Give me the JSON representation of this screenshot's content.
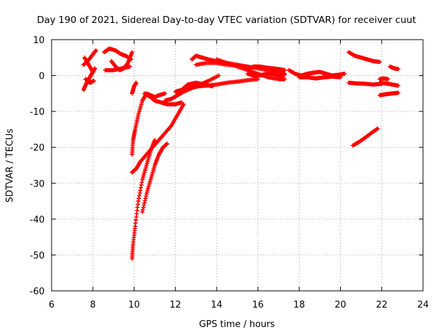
{
  "chart_data": {
    "type": "scatter",
    "title": "Day 190 of 2021, Sidereal Day-to-day VTEC variation (SDTVAR) for receiver cuut",
    "xlabel": "GPS time / hours",
    "ylabel": "SDTVAR / TECUs",
    "xlim": [
      6,
      24
    ],
    "ylim": [
      -60,
      10
    ],
    "x_ticks": [
      6,
      8,
      10,
      12,
      14,
      16,
      18,
      20,
      22,
      24
    ],
    "y_ticks": [
      10,
      0,
      -10,
      -20,
      -30,
      -40,
      -50,
      -60
    ],
    "grid": true,
    "marker": "+",
    "color": "#ff0000",
    "series": [
      {
        "name": "s1",
        "x": [
          7.55,
          7.7,
          7.85,
          8.0,
          8.1
        ],
        "y": [
          -4,
          -2,
          -0.5,
          1,
          2
        ]
      },
      {
        "name": "s2",
        "x": [
          7.55,
          7.75,
          7.95,
          8.15
        ],
        "y": [
          3,
          4,
          5.5,
          7
        ]
      },
      {
        "name": "s3",
        "x": [
          7.6,
          7.8,
          8.0
        ],
        "y": [
          5,
          3,
          1
        ]
      },
      {
        "name": "s4",
        "x": [
          7.65,
          7.85,
          8.05
        ],
        "y": [
          -1,
          -2,
          -1.5
        ]
      },
      {
        "name": "s5",
        "x": [
          8.55,
          8.8,
          9.1,
          9.35,
          9.6,
          9.85
        ],
        "y": [
          6.5,
          7.5,
          7,
          6,
          5.5,
          4.5
        ]
      },
      {
        "name": "s6",
        "x": [
          8.6,
          9.0,
          9.4,
          9.8
        ],
        "y": [
          1.5,
          1.5,
          2,
          2.5
        ]
      },
      {
        "name": "s7",
        "x": [
          8.9,
          9.1,
          9.3,
          9.5,
          9.7,
          9.9
        ],
        "y": [
          4,
          2.5,
          1.5,
          2,
          3.5,
          6.5
        ]
      },
      {
        "name": "s8",
        "x": [
          9.9,
          10.0,
          10.1
        ],
        "y": [
          -5,
          -3,
          -2
        ]
      },
      {
        "name": "s9",
        "x": [
          9.9,
          9.95,
          10.05,
          10.2,
          10.4,
          10.6,
          10.8,
          11.0
        ],
        "y": [
          -51,
          -47,
          -42,
          -35,
          -29,
          -25,
          -21,
          -18
        ]
      },
      {
        "name": "s10",
        "x": [
          9.9,
          9.95,
          10.05,
          10.2,
          10.4,
          10.6,
          10.8,
          11.0,
          11.2,
          11.5
        ],
        "y": [
          -22,
          -18,
          -15,
          -11,
          -7,
          -5,
          -5.5,
          -6,
          -5.5,
          -5
        ]
      },
      {
        "name": "s11",
        "x": [
          9.9,
          10.1,
          10.3,
          10.6,
          10.9,
          11.2,
          11.5,
          11.8,
          12.1,
          12.4
        ],
        "y": [
          -27,
          -26,
          -24,
          -22,
          -20,
          -18,
          -16,
          -14,
          -11,
          -8
        ]
      },
      {
        "name": "s12",
        "x": [
          10.5,
          10.8,
          11.0,
          11.3,
          11.6,
          12.0,
          12.3
        ],
        "y": [
          -5,
          -6,
          -7,
          -7.5,
          -8,
          -8,
          -7.5
        ]
      },
      {
        "name": "s13",
        "x": [
          11.5,
          11.8,
          12.1,
          12.4,
          12.8,
          13.2,
          13.6,
          14.1
        ],
        "y": [
          -7,
          -6.5,
          -5.5,
          -4.5,
          -3.5,
          -2.5,
          -1.5,
          0
        ]
      },
      {
        "name": "s14",
        "x": [
          10.4,
          10.6,
          10.8,
          11.0,
          11.2,
          11.4,
          11.6
        ],
        "y": [
          -38,
          -33,
          -29,
          -25,
          -22,
          -20,
          -19
        ]
      },
      {
        "name": "s15",
        "x": [
          12.0,
          12.3,
          12.7,
          13.1,
          13.5,
          14.0,
          14.5,
          15.0,
          15.5,
          16.0
        ],
        "y": [
          -4.5,
          -4,
          -3.5,
          -3,
          -2.8,
          -2.5,
          -2,
          -1.7,
          -1.3,
          -1
        ]
      },
      {
        "name": "s16",
        "x": [
          12.0,
          12.3,
          12.6,
          13.0,
          13.4,
          13.8
        ],
        "y": [
          -6,
          -4,
          -2.5,
          -2,
          -2.5,
          -3
        ]
      },
      {
        "name": "s17",
        "x": [
          12.8,
          13.0,
          13.3,
          13.6,
          14.0,
          14.5,
          15.0,
          15.5,
          16.0,
          16.5,
          17.0,
          17.3
        ],
        "y": [
          4.5,
          5.5,
          5,
          4.5,
          4,
          3.5,
          3,
          2.5,
          2,
          1.5,
          1,
          0.5
        ]
      },
      {
        "name": "s18",
        "x": [
          13.0,
          13.5,
          14.0,
          14.5,
          15.0,
          15.5
        ],
        "y": [
          3,
          3.5,
          3.5,
          3,
          2.8,
          2.5
        ]
      },
      {
        "name": "s19",
        "x": [
          14.0,
          14.5,
          15.0,
          15.5,
          16.0,
          16.5,
          17.0,
          17.3
        ],
        "y": [
          4.5,
          3.5,
          2.5,
          1.5,
          0.5,
          -0.5,
          -1,
          -1
        ]
      },
      {
        "name": "s20",
        "x": [
          15.5,
          15.8,
          16.1,
          16.4,
          16.7,
          17.0,
          17.3
        ],
        "y": [
          2,
          2.5,
          2.5,
          2.2,
          2,
          1.8,
          1.5
        ]
      },
      {
        "name": "s21",
        "x": [
          15.5,
          15.8,
          16.1,
          16.4,
          16.7,
          17.0,
          17.3
        ],
        "y": [
          0.5,
          0,
          0,
          0.5,
          0.5,
          0,
          0.3
        ]
      },
      {
        "name": "s22",
        "x": [
          17.5,
          17.8,
          18.1,
          18.4,
          18.7,
          19.0,
          19.3,
          19.6,
          19.9,
          20.2
        ],
        "y": [
          1.5,
          0.5,
          0,
          0.5,
          0.8,
          1,
          0.5,
          0,
          0.2,
          0.5
        ]
      },
      {
        "name": "s23",
        "x": [
          18.0,
          18.4,
          18.8,
          19.2,
          19.6,
          20.0
        ],
        "y": [
          -0.5,
          -0.5,
          -0.8,
          -0.5,
          -0.3,
          -0.5
        ]
      },
      {
        "name": "s24",
        "x": [
          20.4,
          20.7,
          21.0,
          21.3,
          21.6,
          21.9
        ],
        "y": [
          6.5,
          5.5,
          5,
          4.5,
          4,
          3.8
        ]
      },
      {
        "name": "s25",
        "x": [
          20.4,
          20.8,
          21.2,
          21.6,
          22.0
        ],
        "y": [
          -2,
          -2.2,
          -2.3,
          -2.5,
          -2.3
        ]
      },
      {
        "name": "s26",
        "x": [
          20.6,
          20.9,
          21.2,
          21.5,
          21.8
        ],
        "y": [
          -19.5,
          -18.5,
          -17.3,
          -16,
          -14.8
        ]
      },
      {
        "name": "s27",
        "x": [
          21.9,
          22.1,
          22.3
        ],
        "y": [
          -1,
          -0.8,
          -1
        ]
      },
      {
        "name": "s28",
        "x": [
          21.9,
          22.2,
          22.5,
          22.8
        ],
        "y": [
          -2,
          -2.2,
          -2.5,
          -2.8
        ]
      },
      {
        "name": "s29",
        "x": [
          21.9,
          22.2,
          22.5,
          22.8
        ],
        "y": [
          -5.5,
          -5.2,
          -5,
          -4.8
        ]
      },
      {
        "name": "s30",
        "x": [
          22.4,
          22.6,
          22.8
        ],
        "y": [
          2.5,
          2,
          1.8
        ]
      }
    ]
  }
}
